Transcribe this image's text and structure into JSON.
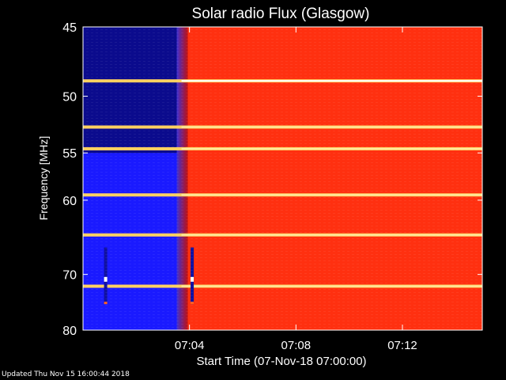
{
  "chart_data": {
    "type": "heatmap",
    "title": "Solar radio Flux (Glasgow)",
    "xlabel": "Start Time (07-Nov-18 07:00:00)",
    "ylabel": "Frequency [MHz]",
    "x_range_minutes": [
      0.0,
      15.0
    ],
    "x_ticks": [
      {
        "minute": 4,
        "label": "07:04"
      },
      {
        "minute": 8,
        "label": "07:08"
      },
      {
        "minute": 12,
        "label": "07:12"
      }
    ],
    "y_range_mhz": [
      45,
      80
    ],
    "y_ticks": [
      45,
      50,
      55,
      60,
      70,
      80
    ],
    "y_scale": "reciprocal",
    "colormap": [
      "#000030",
      "#1a1aff",
      "#c00000",
      "#ff3010",
      "#ffd060",
      "#ffffff"
    ],
    "regions": [
      {
        "name": "low-signal",
        "x_minutes": [
          0.0,
          3.7
        ],
        "level": "low"
      },
      {
        "name": "high-signal",
        "x_minutes": [
          3.7,
          15.0
        ],
        "level": "high"
      }
    ],
    "bright_bands_mhz": [
      48.8,
      52.6,
      54.6,
      59.4,
      64.3,
      71.9
    ],
    "spike_events_minutes": [
      0.85,
      4.1
    ]
  },
  "footer": {
    "updated": "Updated Thu Nov 15 16:00:44 2018"
  }
}
